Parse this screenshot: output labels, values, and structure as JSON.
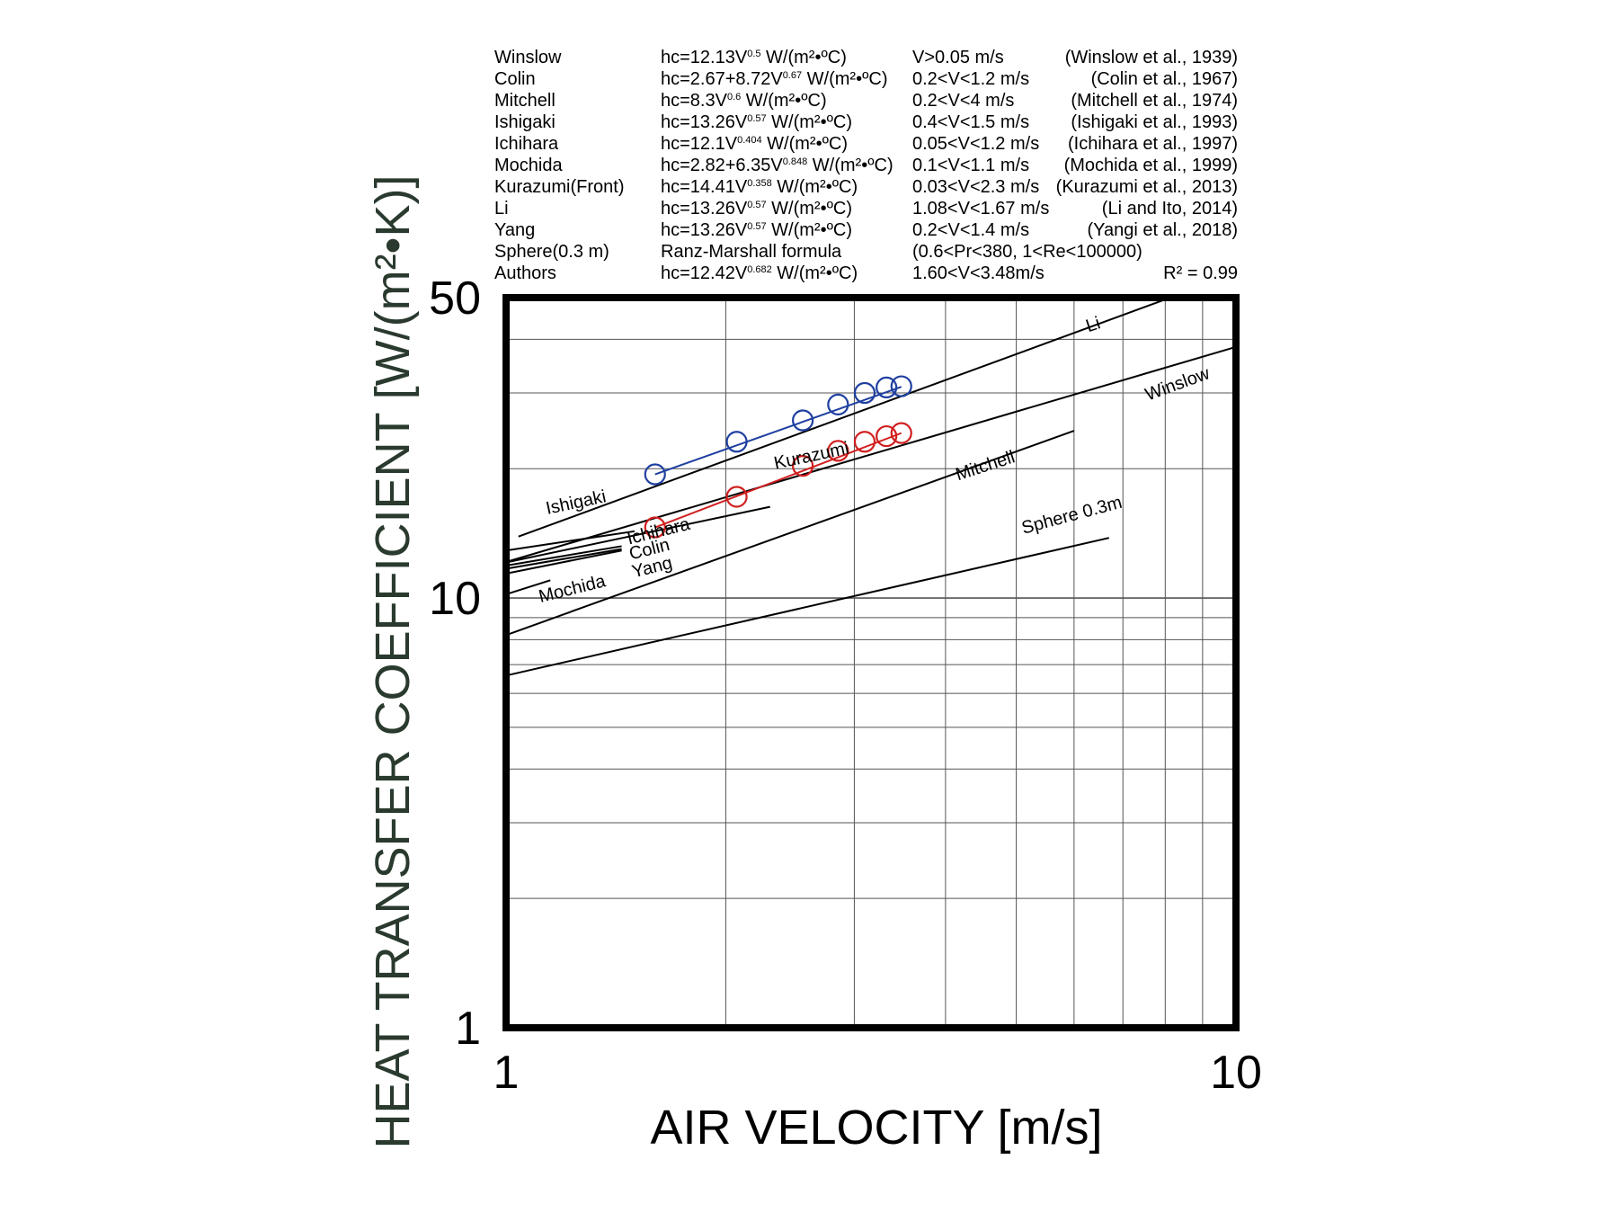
{
  "chart_data": {
    "type": "line",
    "x_scale": "log",
    "y_scale": "log",
    "xlim": [
      1,
      10
    ],
    "ylim": [
      1,
      50
    ],
    "xlabel": "AIR VELOCITY [m/s]",
    "ylabel": "HEAT TRANSFER COEFFICIENT [W/(m²•K)]",
    "x_ticks": [
      "1",
      "10"
    ],
    "y_ticks": [
      "1",
      "10",
      "50"
    ],
    "grid": true,
    "legend": [
      {
        "name": "Winslow",
        "formula": "hc=12.13V",
        "exp": "0.5",
        "unit": " W/(m²•ºC)",
        "range": "V>0.05 m/s",
        "ref": "(Winslow et al., 1939)"
      },
      {
        "name": "Colin",
        "formula": "hc=2.67+8.72V",
        "exp": "0.67",
        "unit": " W/(m²•ºC)",
        "range": "0.2<V<1.2 m/s",
        "ref": "(Colin et al., 1967)"
      },
      {
        "name": "Mitchell",
        "formula": "hc=8.3V",
        "exp": "0.6",
        "unit": " W/(m²•ºC)",
        "range": "0.2<V<4 m/s",
        "ref": "(Mitchell et al., 1974)"
      },
      {
        "name": "Ishigaki",
        "formula": "hc=13.26V",
        "exp": "0.57",
        "unit": " W/(m²•ºC)",
        "range": "0.4<V<1.5 m/s",
        "ref": "(Ishigaki et al., 1993)"
      },
      {
        "name": "Ichihara",
        "formula": "hc=12.1V",
        "exp": "0.404",
        "unit": " W/(m²•ºC)",
        "range": "0.05<V<1.2 m/s",
        "ref": "(Ichihara et al., 1997)"
      },
      {
        "name": "Mochida",
        "formula": "hc=2.82+6.35V",
        "exp": "0.848",
        "unit": " W/(m²•ºC)",
        "range": "0.1<V<1.1 m/s",
        "ref": "(Mochida et al., 1999)"
      },
      {
        "name": "Kurazumi(Front)",
        "formula": "hc=14.41V",
        "exp": "0.358",
        "unit": " W/(m²•ºC)",
        "range": "0.03<V<2.3 m/s",
        "ref": "(Kurazumi et al., 2013)"
      },
      {
        "name": "Li",
        "formula": "hc=13.26V",
        "exp": "0.57",
        "unit": " W/(m²•ºC)",
        "range": "1.08<V<1.67 m/s",
        "ref": "(Li and Ito, 2014)"
      },
      {
        "name": "Yang",
        "formula": "hc=13.26V",
        "exp": "0.57",
        "unit": " W/(m²•ºC)",
        "range": "0.2<V<1.4 m/s",
        "ref": "(Yangi et al., 2018)"
      },
      {
        "name": "Sphere(0.3 m)",
        "formula": "Ranz-Marshall formula",
        "exp": "",
        "unit": "",
        "range": "(0.6<Pr<380, 1<Re<100000)",
        "ref": ""
      },
      {
        "name": "Authors",
        "formula": "hc=12.42V",
        "exp": "0.682",
        "unit": " W/(m²•ºC)",
        "range": "1.60<V<3.48m/s",
        "ref": "R² = 0.99"
      }
    ],
    "curve_labels": [
      "Li",
      "Winslow",
      "Mitchell",
      "Sphere 0.3m",
      "Kurazumi",
      "Ishigaki",
      "Ichihara",
      "Colin",
      "Yang",
      "Mochida"
    ],
    "lines": [
      {
        "name": "Li",
        "x": [
          1.04,
          8.0
        ],
        "y": [
          13.9,
          49.5
        ]
      },
      {
        "name": "Winslow",
        "x": [
          1.0,
          10.0
        ],
        "y": [
          12.13,
          38.4
        ]
      },
      {
        "name": "Mitchell",
        "x": [
          1.0,
          6.0
        ],
        "y": [
          8.2,
          24.5
        ]
      },
      {
        "name": "Sphere 0.3m",
        "x": [
          1.0,
          6.7
        ],
        "y": [
          6.6,
          13.8
        ]
      },
      {
        "name": "Kurazumi",
        "x": [
          1.0,
          2.3
        ],
        "y": [
          12.1,
          16.3
        ]
      },
      {
        "name": "Ishigaki",
        "x": [
          1.0,
          1.5
        ],
        "y": [
          12.9,
          14.3
        ]
      },
      {
        "name": "Ichihara",
        "x": [
          1.0,
          1.44
        ],
        "y": [
          11.9,
          13.2
        ]
      },
      {
        "name": "Colin",
        "x": [
          1.0,
          1.44
        ],
        "y": [
          11.4,
          12.9
        ]
      },
      {
        "name": "Yang",
        "x": [
          1.0,
          1.44
        ],
        "y": [
          11.7,
          13.0
        ]
      },
      {
        "name": "Mochida",
        "x": [
          1.0,
          1.15
        ],
        "y": [
          10.2,
          11.0
        ]
      }
    ],
    "series": [
      {
        "name": "",
        "color": "#1f3fa0",
        "x": [
          1.6,
          2.07,
          2.55,
          2.85,
          3.1,
          3.32,
          3.48
        ],
        "y": [
          19.4,
          23.1,
          25.9,
          28.2,
          30.0,
          30.9,
          31.1
        ]
      },
      {
        "name": "",
        "color": "#d11f1f",
        "x": [
          1.6,
          2.07,
          2.55,
          2.85,
          3.1,
          3.32,
          3.48
        ],
        "y": [
          14.6,
          17.2,
          20.3,
          22.0,
          23.1,
          23.8,
          24.2
        ]
      }
    ],
    "fit_lines": [
      {
        "color": "#1f3fa0",
        "x": [
          1.6,
          3.48
        ],
        "y": [
          19.4,
          31.0
        ]
      },
      {
        "color": "#d11f1f",
        "x": [
          1.6,
          3.48
        ],
        "y": [
          14.6,
          24.2
        ]
      }
    ]
  }
}
